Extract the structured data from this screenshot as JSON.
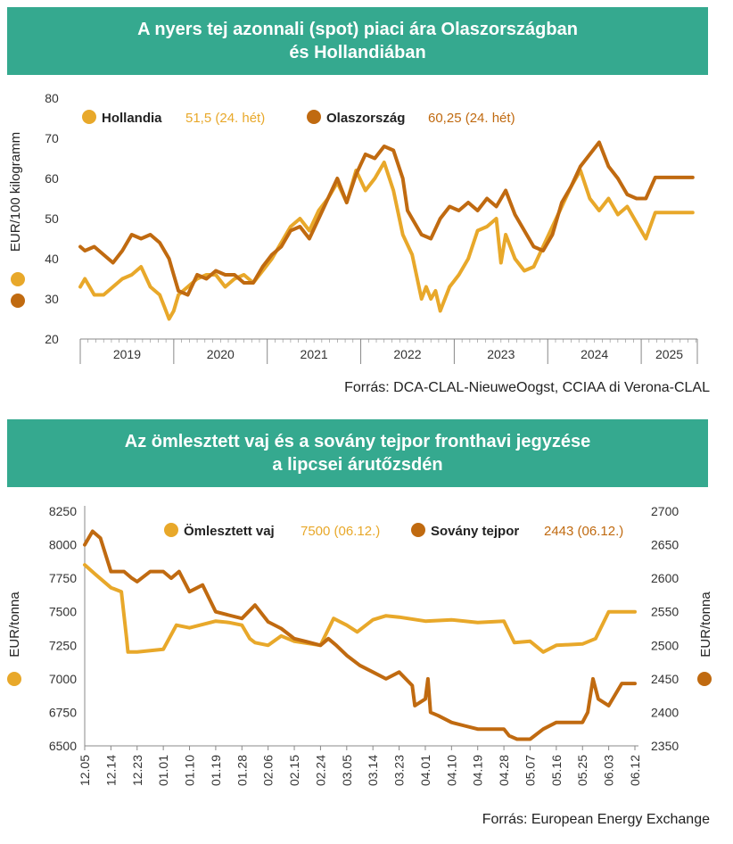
{
  "colors": {
    "header_bg": "#35a98f",
    "light": "#e8a82a",
    "dark": "#c06a10",
    "axis": "#888888"
  },
  "chart1": {
    "title_line1": "A nyers tej azonnali (spot) piaci ára Olaszországban",
    "title_line2": "és Hollandiában",
    "source": "Forrás: DCA-CLAL-NieuweOogst, CCIAA di Verona-CLAL",
    "legend": [
      {
        "name": "Hollandia",
        "value": "51,5 (24. hét)"
      },
      {
        "name": "Olaszország",
        "value": "60,25 (24. hét)"
      }
    ]
  },
  "chart2": {
    "title_line1": "Az ömlesztett vaj és a sovány tejpor fronthavi jegyzése",
    "title_line2": "a lipcsei árutőzsdén",
    "source": "Forrás: European Energy Exchange",
    "legend": [
      {
        "name": "Ömlesztett vaj",
        "value": "7500 (06.12.)"
      },
      {
        "name": "Sovány tejpor",
        "value": "2443 (06.12.)"
      }
    ]
  },
  "chart_data": [
    {
      "type": "line",
      "ylabel": "EUR/100 kilogramm",
      "ylim": [
        20,
        80
      ],
      "yticks": [
        "80",
        "70",
        "60",
        "50",
        "40",
        "30",
        "20"
      ],
      "xlim": [
        2018.85,
        2025.45
      ],
      "years": [
        "2019",
        "2020",
        "2021",
        "2022",
        "2023",
        "2024",
        "2025"
      ],
      "year_bounds": [
        2018.85,
        2019.85,
        2020.85,
        2021.85,
        2022.85,
        2023.85,
        2024.85,
        2025.45
      ],
      "series": [
        {
          "name": "Hollandia",
          "color": "light",
          "x": [
            2018.85,
            2018.9,
            2018.95,
            2019.0,
            2019.1,
            2019.2,
            2019.3,
            2019.4,
            2019.5,
            2019.6,
            2019.7,
            2019.75,
            2019.8,
            2019.85,
            2019.9,
            2020.0,
            2020.1,
            2020.2,
            2020.3,
            2020.4,
            2020.5,
            2020.6,
            2020.7,
            2020.8,
            2020.9,
            2021.0,
            2021.1,
            2021.2,
            2021.3,
            2021.4,
            2021.5,
            2021.6,
            2021.7,
            2021.8,
            2021.9,
            2022.0,
            2022.1,
            2022.2,
            2022.3,
            2022.4,
            2022.5,
            2022.55,
            2022.6,
            2022.65,
            2022.7,
            2022.8,
            2022.9,
            2023.0,
            2023.1,
            2023.2,
            2023.3,
            2023.35,
            2023.4,
            2023.5,
            2023.6,
            2023.7,
            2023.8,
            2023.9,
            2024.0,
            2024.1,
            2024.2,
            2024.3,
            2024.4,
            2024.5,
            2024.6,
            2024.7,
            2024.8,
            2024.9,
            2025.0,
            2025.1,
            2025.2,
            2025.3,
            2025.4
          ],
          "values": [
            33,
            35,
            33,
            31,
            31,
            33,
            35,
            36,
            38,
            33,
            31,
            28,
            25,
            27,
            31,
            33,
            35,
            36,
            36,
            33,
            35,
            36,
            34,
            37,
            40,
            44,
            48,
            50,
            47,
            52,
            55,
            59,
            54,
            62,
            57,
            60,
            64,
            57,
            46,
            41,
            30,
            33,
            30,
            32,
            27,
            33,
            36,
            40,
            47,
            48,
            50,
            39,
            46,
            40,
            37,
            38,
            43,
            48,
            53,
            58,
            62,
            55,
            52,
            55,
            51,
            53,
            49,
            45,
            51.5,
            51.5,
            51.5,
            51.5,
            51.5
          ]
        },
        {
          "name": "Olaszország",
          "color": "dark",
          "x": [
            2018.85,
            2018.9,
            2019.0,
            2019.1,
            2019.2,
            2019.3,
            2019.4,
            2019.5,
            2019.6,
            2019.7,
            2019.8,
            2019.85,
            2019.9,
            2020.0,
            2020.1,
            2020.2,
            2020.3,
            2020.4,
            2020.5,
            2020.6,
            2020.7,
            2020.8,
            2020.9,
            2021.0,
            2021.1,
            2021.2,
            2021.3,
            2021.4,
            2021.5,
            2021.6,
            2021.7,
            2021.8,
            2021.9,
            2022.0,
            2022.1,
            2022.2,
            2022.3,
            2022.35,
            2022.4,
            2022.5,
            2022.6,
            2022.7,
            2022.8,
            2022.9,
            2023.0,
            2023.1,
            2023.2,
            2023.3,
            2023.4,
            2023.5,
            2023.6,
            2023.7,
            2023.8,
            2023.9,
            2024.0,
            2024.1,
            2024.2,
            2024.3,
            2024.4,
            2024.5,
            2024.6,
            2024.7,
            2024.8,
            2024.9,
            2025.0,
            2025.1,
            2025.2,
            2025.3,
            2025.4
          ],
          "values": [
            43,
            42,
            43,
            41,
            39,
            42,
            46,
            45,
            46,
            44,
            40,
            36,
            32,
            31,
            36,
            35,
            37,
            36,
            36,
            34,
            34,
            38,
            41,
            43,
            47,
            48,
            45,
            50,
            55,
            60,
            54,
            61,
            66,
            65,
            68,
            67,
            60,
            52,
            50,
            46,
            45,
            50,
            53,
            52,
            54,
            52,
            55,
            53,
            57,
            51,
            47,
            43,
            42,
            46,
            54,
            58,
            63,
            66,
            69,
            63,
            60,
            56,
            55,
            55,
            60.25,
            60.25,
            60.25,
            60.25,
            60.25
          ]
        }
      ]
    },
    {
      "type": "line",
      "ylabel_left": "EUR/tonna",
      "ylabel_right": "EUR/tonna",
      "ylim_left": [
        6500,
        8250
      ],
      "ylim_right": [
        2350,
        2700
      ],
      "yticks_left": [
        "8250",
        "8000",
        "7750",
        "7500",
        "7250",
        "7000",
        "6750",
        "6500"
      ],
      "yticks_right": [
        "2700",
        "2650",
        "2600",
        "2550",
        "2500",
        "2450",
        "2400",
        "2350"
      ],
      "categories": [
        "12.05",
        "12.14",
        "12.23",
        "01.01",
        "01.10",
        "01.19",
        "01.28",
        "02.06",
        "02.15",
        "02.24",
        "03.05",
        "03.14",
        "03.23",
        "04.01",
        "04.10",
        "04.19",
        "04.28",
        "05.07",
        "05.16",
        "05.25",
        "06.03",
        "06.12"
      ],
      "series": [
        {
          "name": "Ömlesztett vaj",
          "axis": "left",
          "color": "light",
          "x": [
            0,
            0.4,
            1,
            1.4,
            1.6,
            1.65,
            2,
            3,
            3.5,
            4,
            5,
            5.5,
            6,
            6.3,
            6.5,
            7,
            7.5,
            8,
            9,
            9.5,
            10,
            10.4,
            11,
            11.5,
            12,
            13,
            14,
            15,
            16,
            16.4,
            17,
            17.5,
            18,
            19,
            19.5,
            20,
            21
          ],
          "values": [
            7850,
            7780,
            7680,
            7650,
            7300,
            7200,
            7200,
            7220,
            7400,
            7380,
            7430,
            7420,
            7400,
            7300,
            7270,
            7250,
            7320,
            7280,
            7250,
            7450,
            7400,
            7350,
            7440,
            7470,
            7460,
            7430,
            7440,
            7420,
            7430,
            7270,
            7280,
            7200,
            7250,
            7260,
            7300,
            7500,
            7500
          ]
        },
        {
          "name": "Sovány tejpor",
          "axis": "right",
          "color": "dark",
          "x": [
            0,
            0.3,
            0.6,
            1,
            1.5,
            1.8,
            2,
            2.5,
            3,
            3.3,
            3.6,
            4,
            4.5,
            5,
            5.5,
            6,
            6.5,
            7,
            7.5,
            8,
            8.5,
            9,
            9.3,
            9.6,
            10,
            10.5,
            11,
            11.5,
            12,
            12.5,
            12.6,
            13,
            13.1,
            13.2,
            13.5,
            14,
            14.5,
            15,
            15.5,
            16,
            16.2,
            16.5,
            17,
            17.5,
            18,
            18.5,
            19,
            19.2,
            19.4,
            19.6,
            20,
            20.5,
            21
          ],
          "values": [
            2650,
            2670,
            2660,
            2610,
            2610,
            2600,
            2595,
            2610,
            2610,
            2600,
            2610,
            2580,
            2590,
            2550,
            2545,
            2540,
            2560,
            2535,
            2525,
            2510,
            2505,
            2500,
            2510,
            2500,
            2485,
            2470,
            2460,
            2450,
            2460,
            2440,
            2410,
            2420,
            2450,
            2400,
            2395,
            2385,
            2380,
            2375,
            2375,
            2375,
            2365,
            2360,
            2360,
            2375,
            2385,
            2385,
            2385,
            2400,
            2450,
            2420,
            2410,
            2443,
            2443
          ]
        }
      ]
    }
  ]
}
